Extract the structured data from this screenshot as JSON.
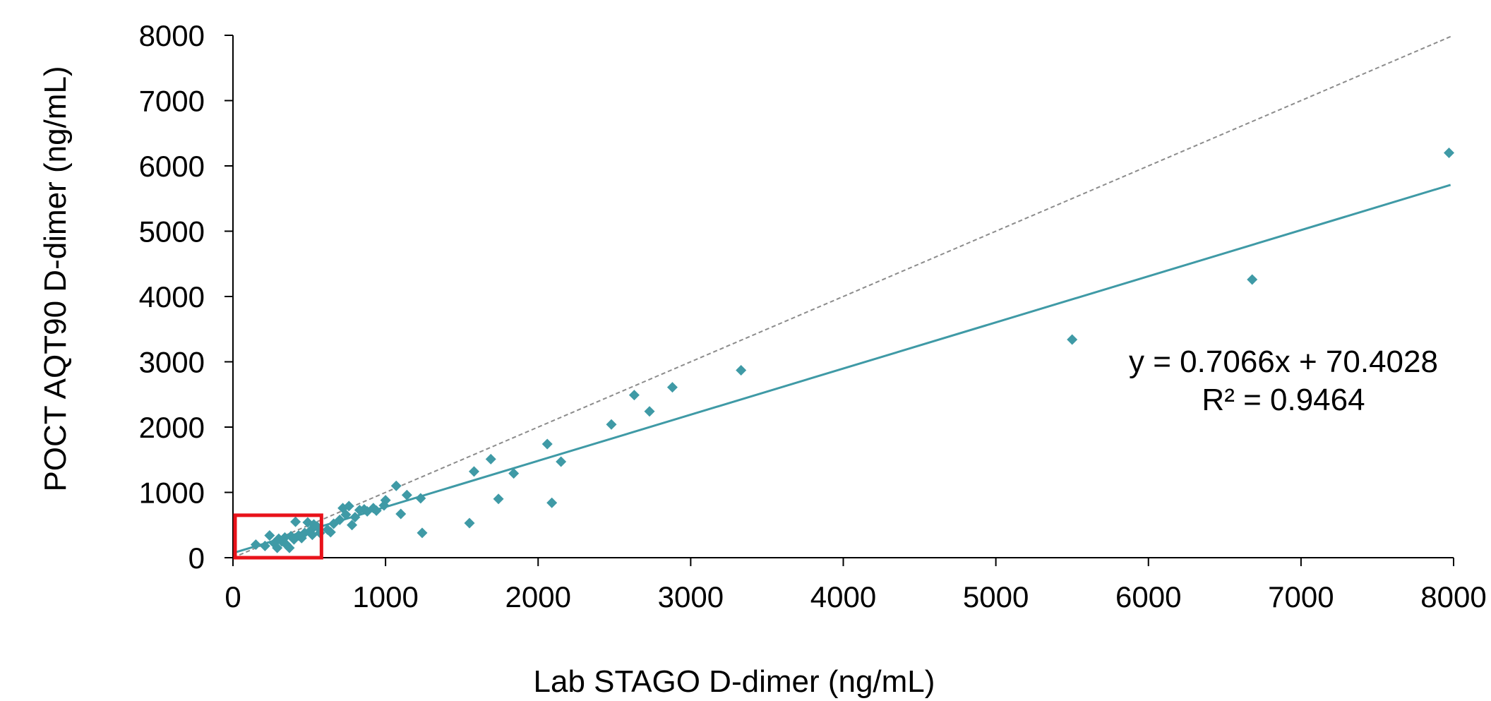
{
  "chart_data": {
    "type": "scatter",
    "title": "",
    "xlabel": "Lab STAGO D-dimer (ng/mL)",
    "ylabel": "POCT AQT90  D-dimer (ng/mL)",
    "xlim": [
      0,
      8000
    ],
    "ylim": [
      0,
      8000
    ],
    "xticks": [
      "0",
      "1000",
      "2000",
      "3000",
      "4000",
      "5000",
      "6000",
      "7000",
      "8000"
    ],
    "yticks": [
      "0",
      "1000",
      "2000",
      "3000",
      "4000",
      "5000",
      "6000",
      "7000",
      "8000"
    ],
    "grid": false,
    "legend": "none",
    "marker": "diamond",
    "colors": {
      "points": "#3f9aa6",
      "trendline": "#3f9aa6",
      "identity_line": "#8c8c8c",
      "highlight_box": "#e8121a",
      "axis": "#000000"
    },
    "trendline": {
      "slope": 0.7066,
      "intercept": 70.4028,
      "x_range": [
        0,
        7980
      ]
    },
    "identity_line": {
      "x_range": [
        0,
        7980
      ]
    },
    "highlight_region": {
      "x": [
        0,
        580
      ],
      "y": [
        0,
        650
      ]
    },
    "annotations": {
      "equation": "y = 0.7066x + 70.4028",
      "r_squared": "R² = 0.9464"
    },
    "points": [
      [
        150,
        200
      ],
      [
        210,
        180
      ],
      [
        240,
        340
      ],
      [
        270,
        220
      ],
      [
        290,
        150
      ],
      [
        300,
        290
      ],
      [
        320,
        250
      ],
      [
        340,
        310
      ],
      [
        350,
        200
      ],
      [
        370,
        150
      ],
      [
        380,
        330
      ],
      [
        400,
        280
      ],
      [
        410,
        550
      ],
      [
        430,
        340
      ],
      [
        450,
        300
      ],
      [
        470,
        380
      ],
      [
        490,
        540
      ],
      [
        510,
        420
      ],
      [
        520,
        350
      ],
      [
        530,
        510
      ],
      [
        550,
        480
      ],
      [
        570,
        380
      ],
      [
        620,
        430
      ],
      [
        640,
        390
      ],
      [
        660,
        520
      ],
      [
        700,
        580
      ],
      [
        720,
        760
      ],
      [
        740,
        660
      ],
      [
        760,
        790
      ],
      [
        780,
        500
      ],
      [
        800,
        620
      ],
      [
        830,
        730
      ],
      [
        860,
        740
      ],
      [
        880,
        710
      ],
      [
        920,
        760
      ],
      [
        940,
        720
      ],
      [
        990,
        800
      ],
      [
        1000,
        880
      ],
      [
        1070,
        1100
      ],
      [
        1100,
        670
      ],
      [
        1140,
        960
      ],
      [
        1230,
        910
      ],
      [
        1240,
        380
      ],
      [
        1550,
        530
      ],
      [
        1580,
        1320
      ],
      [
        1690,
        1510
      ],
      [
        1740,
        900
      ],
      [
        1840,
        1290
      ],
      [
        2060,
        1740
      ],
      [
        2090,
        840
      ],
      [
        2150,
        1470
      ],
      [
        2480,
        2040
      ],
      [
        2630,
        2490
      ],
      [
        2730,
        2240
      ],
      [
        2880,
        2610
      ],
      [
        3330,
        2870
      ],
      [
        5500,
        3340
      ],
      [
        6680,
        4260
      ],
      [
        7970,
        6200
      ]
    ]
  }
}
